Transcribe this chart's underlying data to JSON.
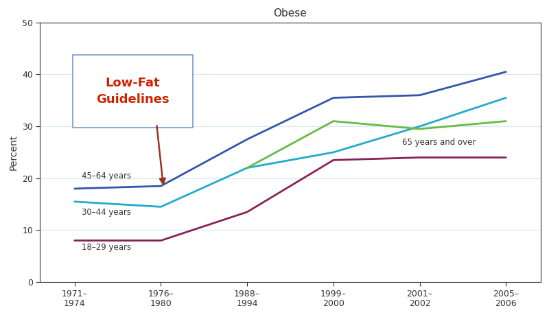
{
  "title": "Obese",
  "ylabel": "Percent",
  "ylim": [
    0,
    50
  ],
  "yticks": [
    0,
    10,
    20,
    30,
    40,
    50
  ],
  "x_positions": [
    0,
    1,
    2,
    3,
    4,
    5
  ],
  "x_labels": [
    "1971–\n1974",
    "1976–\n1980",
    "1988–\n1994",
    "1999–\n2000",
    "2001–\n2002",
    "2005–\n2006"
  ],
  "series": [
    {
      "label": "45–64 years",
      "color": "#3355aa",
      "values": [
        18.0,
        18.5,
        27.5,
        35.5,
        36.0,
        40.5
      ]
    },
    {
      "label": "30–44 years",
      "color": "#22aacc",
      "values": [
        15.5,
        14.5,
        22.0,
        25.0,
        30.0,
        35.5
      ]
    },
    {
      "label": "65 years and over",
      "color": "#66bb44",
      "values": [
        null,
        null,
        22.0,
        31.0,
        29.5,
        31.0
      ]
    },
    {
      "label": "18–29 years",
      "color": "#882255",
      "values": [
        8.0,
        8.0,
        13.5,
        23.5,
        24.0,
        24.0
      ]
    }
  ],
  "annotation_text": "Low-Fat\nGuidelines",
  "annotation_text_color": "#cc2200",
  "box_edge_color": "#7799cc",
  "arrow_color": "#993322",
  "fig_bg": "#ffffff",
  "ax_bg": "#ffffff",
  "grid_color": "#d8e8f0",
  "spine_color": "#333333",
  "label_color": "#333333"
}
